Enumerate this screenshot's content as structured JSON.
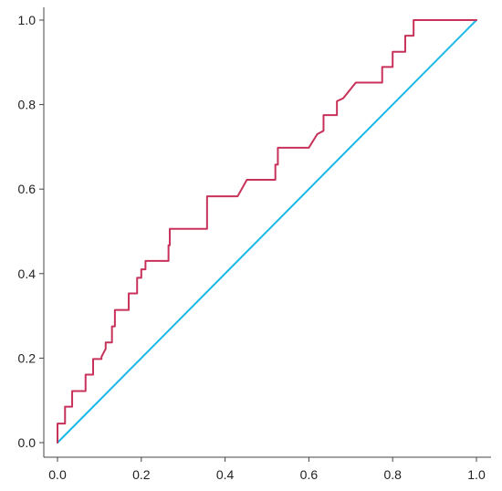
{
  "chart_data": {
    "type": "line",
    "title": "",
    "xlabel": "",
    "ylabel": "",
    "xlim": [
      0.0,
      1.0
    ],
    "ylim": [
      0.0,
      1.0
    ],
    "grid": false,
    "x_ticks": [
      "0.0",
      "0.2",
      "0.4",
      "0.6",
      "0.8",
      "1.0"
    ],
    "y_ticks": [
      "0.0",
      "0.2",
      "0.4",
      "0.6",
      "0.8",
      "1.0"
    ],
    "series": [
      {
        "color": "#c8325a",
        "points": [
          [
            0.0,
            0.0
          ],
          [
            0.0,
            0.045
          ],
          [
            0.018,
            0.045
          ],
          [
            0.018,
            0.085
          ],
          [
            0.035,
            0.085
          ],
          [
            0.035,
            0.122
          ],
          [
            0.067,
            0.122
          ],
          [
            0.067,
            0.161
          ],
          [
            0.085,
            0.161
          ],
          [
            0.085,
            0.198
          ],
          [
            0.105,
            0.198
          ],
          [
            0.105,
            0.203
          ],
          [
            0.115,
            0.222
          ],
          [
            0.115,
            0.237
          ],
          [
            0.13,
            0.237
          ],
          [
            0.13,
            0.275
          ],
          [
            0.137,
            0.275
          ],
          [
            0.137,
            0.314
          ],
          [
            0.17,
            0.314
          ],
          [
            0.17,
            0.353
          ],
          [
            0.19,
            0.353
          ],
          [
            0.19,
            0.39
          ],
          [
            0.2,
            0.39
          ],
          [
            0.2,
            0.41
          ],
          [
            0.21,
            0.41
          ],
          [
            0.21,
            0.43
          ],
          [
            0.265,
            0.43
          ],
          [
            0.265,
            0.467
          ],
          [
            0.268,
            0.467
          ],
          [
            0.268,
            0.506
          ],
          [
            0.357,
            0.506
          ],
          [
            0.357,
            0.583
          ],
          [
            0.43,
            0.583
          ],
          [
            0.452,
            0.622
          ],
          [
            0.52,
            0.622
          ],
          [
            0.52,
            0.658
          ],
          [
            0.526,
            0.658
          ],
          [
            0.526,
            0.698
          ],
          [
            0.6,
            0.698
          ],
          [
            0.62,
            0.73
          ],
          [
            0.635,
            0.738
          ],
          [
            0.635,
            0.775
          ],
          [
            0.667,
            0.775
          ],
          [
            0.667,
            0.808
          ],
          [
            0.682,
            0.815
          ],
          [
            0.712,
            0.852
          ],
          [
            0.775,
            0.852
          ],
          [
            0.775,
            0.889
          ],
          [
            0.8,
            0.889
          ],
          [
            0.8,
            0.925
          ],
          [
            0.83,
            0.925
          ],
          [
            0.83,
            0.963
          ],
          [
            0.85,
            0.963
          ],
          [
            0.85,
            1.0
          ],
          [
            1.0,
            1.0
          ]
        ]
      },
      {
        "color": "#1ab8e8",
        "points": [
          [
            0.0,
            0.0
          ],
          [
            1.0,
            1.0
          ]
        ]
      }
    ]
  }
}
